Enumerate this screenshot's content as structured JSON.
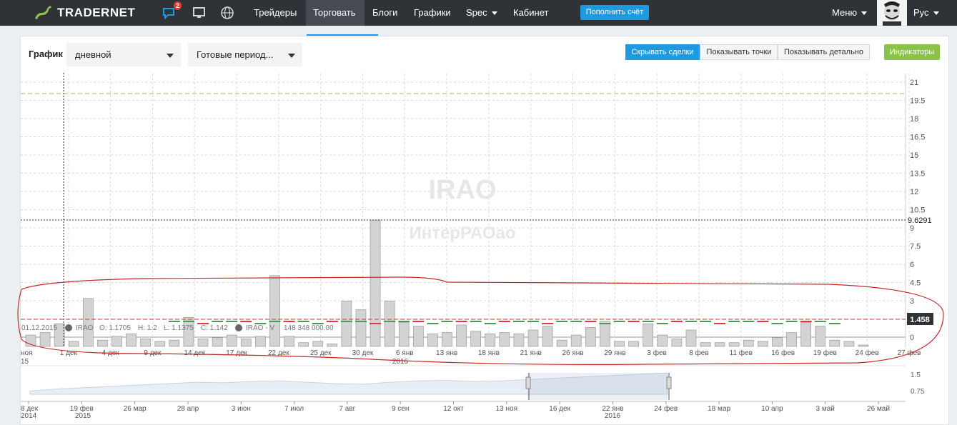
{
  "topbar": {
    "logo_text": "TRADERNET",
    "chat_badge": "2",
    "nav": [
      {
        "label": "Трейдеры",
        "active": false
      },
      {
        "label": "Торговать",
        "active": true
      },
      {
        "label": "Блоги",
        "active": false
      },
      {
        "label": "Графики",
        "active": false
      },
      {
        "label": "Spec",
        "active": false
      },
      {
        "label": "Кабинет",
        "active": false
      }
    ],
    "topup_label": "Пополнить счёт",
    "menu_label": "Меню",
    "lang_label": "Рус",
    "brand_color": "#1e9be0"
  },
  "controls": {
    "chart_label": "График",
    "interval_value": "дневной",
    "periods_value": "Готовые период...",
    "buttons": [
      "Скрывать сделки",
      "Показывать точки",
      "Показывать детально"
    ],
    "indicators_label": "Индикаторы"
  },
  "chart": {
    "watermark_ticker": "IRAO",
    "watermark_name": "ИнтерРАОао",
    "cursor_price": "9.6291",
    "last_price": "1.458",
    "legend": {
      "date": "01.12.2015",
      "ticker": "IRAO",
      "open": "O: 1.1705",
      "high": "H: 1.2",
      "low": "L: 1.1375",
      "close": "C: 1.142",
      "volume_name": "IRAO - V",
      "volume_value": "148 348 000.00"
    },
    "y_ticks": [
      "21",
      "19.5",
      "18",
      "16.5",
      "15",
      "13.5",
      "12",
      "10.5",
      "9",
      "7.5",
      "6",
      "4.5",
      "3",
      "1.5",
      "0"
    ],
    "x_ticks": [
      "ноя",
      "1 дек",
      "4 дек",
      "9 дек",
      "14 дек",
      "17 дек",
      "22 дек",
      "25 дек",
      "30 дек",
      "6 янв",
      "13 янв",
      "18 янв",
      "21 янв",
      "26 янв",
      "29 янв",
      "3 фев",
      "8 фев",
      "11 фев",
      "16 фев",
      "19 фев",
      "24 фев",
      "27 фев"
    ],
    "x_years": [
      "15",
      "2016"
    ],
    "nav_x_ticks": [
      "8 дек",
      "19 фев",
      "26 мар",
      "28 апр",
      "3 июн",
      "7 июл",
      "7 авг",
      "9 сен",
      "12 окт",
      "13 ноя",
      "16 дек",
      "22 янв",
      "24 фев",
      "18 мар",
      "10 апр",
      "3 май",
      "26 май"
    ],
    "nav_years": [
      "2014",
      "2015",
      "2016"
    ],
    "nav_y_ticks": [
      "1.5",
      "0.75"
    ]
  },
  "chart_data": {
    "type": "bar",
    "title": "IRAO",
    "volume_bars": [
      0.9,
      1.1,
      1.8,
      0.4,
      3.8,
      0.5,
      0.8,
      1.0,
      0.6,
      0.4,
      0.5,
      2.3,
      0.6,
      0.7,
      0.9,
      0.6,
      0.8,
      5.6,
      0.8,
      0.3,
      0.4,
      0.2,
      3.6,
      2.9,
      10.0,
      3.6,
      1.9,
      1.6,
      1.0,
      1.1,
      1.7,
      1.2,
      1.0,
      1.1,
      1.0,
      1.3,
      1.6,
      0.5,
      0.9,
      1.5,
      2.0,
      0.4,
      0.4,
      1.8,
      0.9,
      0.6,
      1.3,
      0.3,
      0.3,
      0.3,
      0.5,
      0.4,
      0.7,
      1.1,
      1.9,
      1.6,
      0.5,
      0.4,
      0.1
    ],
    "price_level": 1.458,
    "ylim": [
      0,
      21
    ],
    "y_unit_note": "volume bars share the price axis visually",
    "navigator_series": [
      0.72,
      0.8,
      0.85,
      0.9,
      0.95,
      1.0,
      1.05,
      1.03,
      1.08,
      1.1,
      1.05,
      1.0,
      0.98,
      1.05,
      1.1,
      1.12,
      1.08,
      1.1,
      1.15,
      1.2,
      1.25,
      1.3,
      1.35,
      1.4
    ]
  }
}
